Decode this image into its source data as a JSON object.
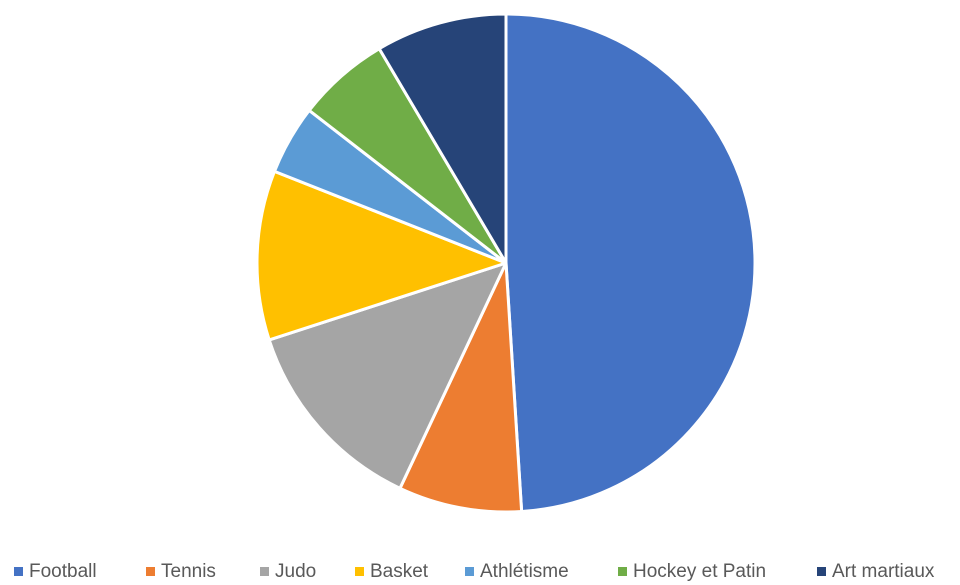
{
  "chart_data": {
    "type": "pie",
    "title": "",
    "legend_position": "bottom",
    "start_angle_deg": 0,
    "direction": "clockwise",
    "categories": [
      "Football",
      "Tennis",
      "Judo",
      "Basket",
      "Athlétisme",
      "Hockey et Patin",
      "Art martiaux"
    ],
    "values": [
      49,
      8,
      13,
      11,
      4.5,
      6,
      8.5
    ],
    "colors": [
      "#4472C4",
      "#ED7D31",
      "#A5A5A5",
      "#FFC000",
      "#5B9BD5",
      "#70AD47",
      "#264478"
    ],
    "slice_border_color": "#FFFFFF"
  }
}
